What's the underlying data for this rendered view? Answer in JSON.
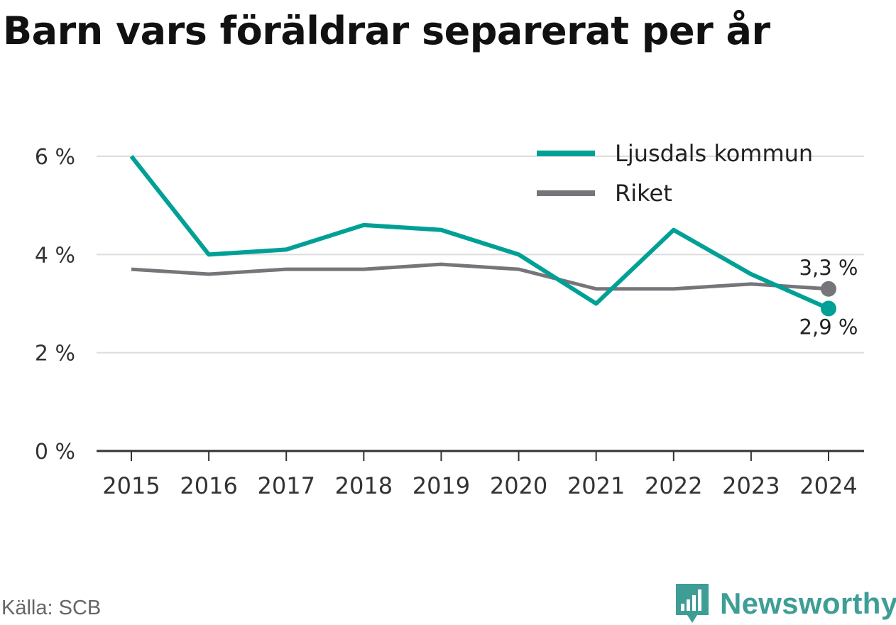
{
  "title": "Barn vars föräldrar separerat per år",
  "source": "Källa: SCB",
  "brand": {
    "name": "Newsworthy",
    "color": "#3e9e96"
  },
  "chart_data": {
    "type": "line",
    "title": "Barn vars föräldrar separerat per år",
    "x": [
      "2015",
      "2016",
      "2017",
      "2018",
      "2019",
      "2020",
      "2021",
      "2022",
      "2023",
      "2024"
    ],
    "y_ticks": [
      {
        "value": 0,
        "label": "0 %"
      },
      {
        "value": 2,
        "label": "2 %"
      },
      {
        "value": 4,
        "label": "4 %"
      },
      {
        "value": 6,
        "label": "6 %"
      }
    ],
    "ylim": [
      0,
      6
    ],
    "grid": true,
    "legend": "top-right",
    "series": [
      {
        "name": "Ljusdals kommun",
        "color": "#00a096",
        "values": [
          6.0,
          4.0,
          4.1,
          4.6,
          4.5,
          4.0,
          3.0,
          4.5,
          3.6,
          2.9
        ],
        "end_label": "2,9 %"
      },
      {
        "name": "Riket",
        "color": "#76757a",
        "values": [
          3.7,
          3.6,
          3.7,
          3.7,
          3.8,
          3.7,
          3.3,
          3.3,
          3.4,
          3.3
        ],
        "end_label": "3,3 %"
      }
    ]
  }
}
